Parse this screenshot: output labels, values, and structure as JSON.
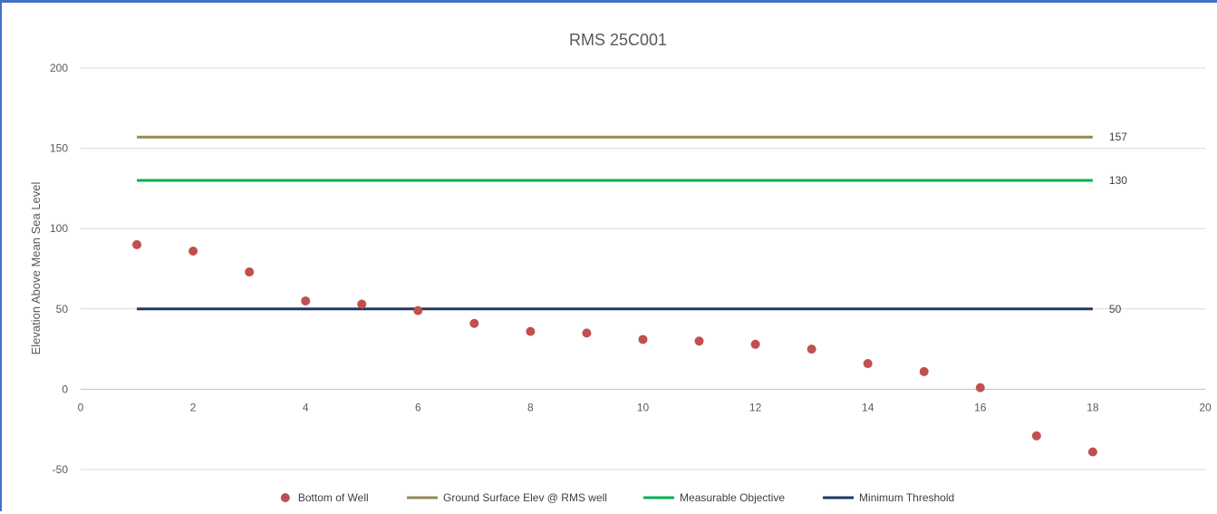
{
  "chart_data": {
    "type": "scatter",
    "title": "RMS 25C001",
    "xlabel": "",
    "ylabel": "Elevation Above Mean Sea Level",
    "xlim": [
      0,
      20
    ],
    "ylim": [
      -50,
      200
    ],
    "x_ticks": [
      0,
      2,
      4,
      6,
      8,
      10,
      12,
      14,
      16,
      18,
      20
    ],
    "y_ticks": [
      -50,
      0,
      50,
      100,
      150,
      200
    ],
    "grid": "horizontal",
    "legend_position": "bottom",
    "series": [
      {
        "name": "Bottom of Well",
        "kind": "scatter",
        "color": "#c0504d",
        "x": [
          1,
          2,
          3,
          4,
          5,
          6,
          7,
          8,
          9,
          10,
          11,
          12,
          13,
          14,
          15,
          16,
          17,
          18
        ],
        "y": [
          90,
          86,
          73,
          55,
          53,
          49,
          41,
          36,
          35,
          31,
          30,
          28,
          25,
          16,
          11,
          1,
          -29,
          -39
        ]
      },
      {
        "name": "Ground Surface Elev @ RMS well",
        "kind": "line",
        "color": "#948a54",
        "x": [
          1,
          18
        ],
        "y": [
          157,
          157
        ],
        "end_label": "157"
      },
      {
        "name": "Measurable Objective",
        "kind": "line",
        "color": "#00b050",
        "x": [
          1,
          18
        ],
        "y": [
          130,
          130
        ],
        "end_label": "130"
      },
      {
        "name": "Minimum Threshold",
        "kind": "line",
        "color": "#1f3864",
        "x": [
          1,
          18
        ],
        "y": [
          50,
          50
        ],
        "end_label": "50"
      }
    ]
  }
}
